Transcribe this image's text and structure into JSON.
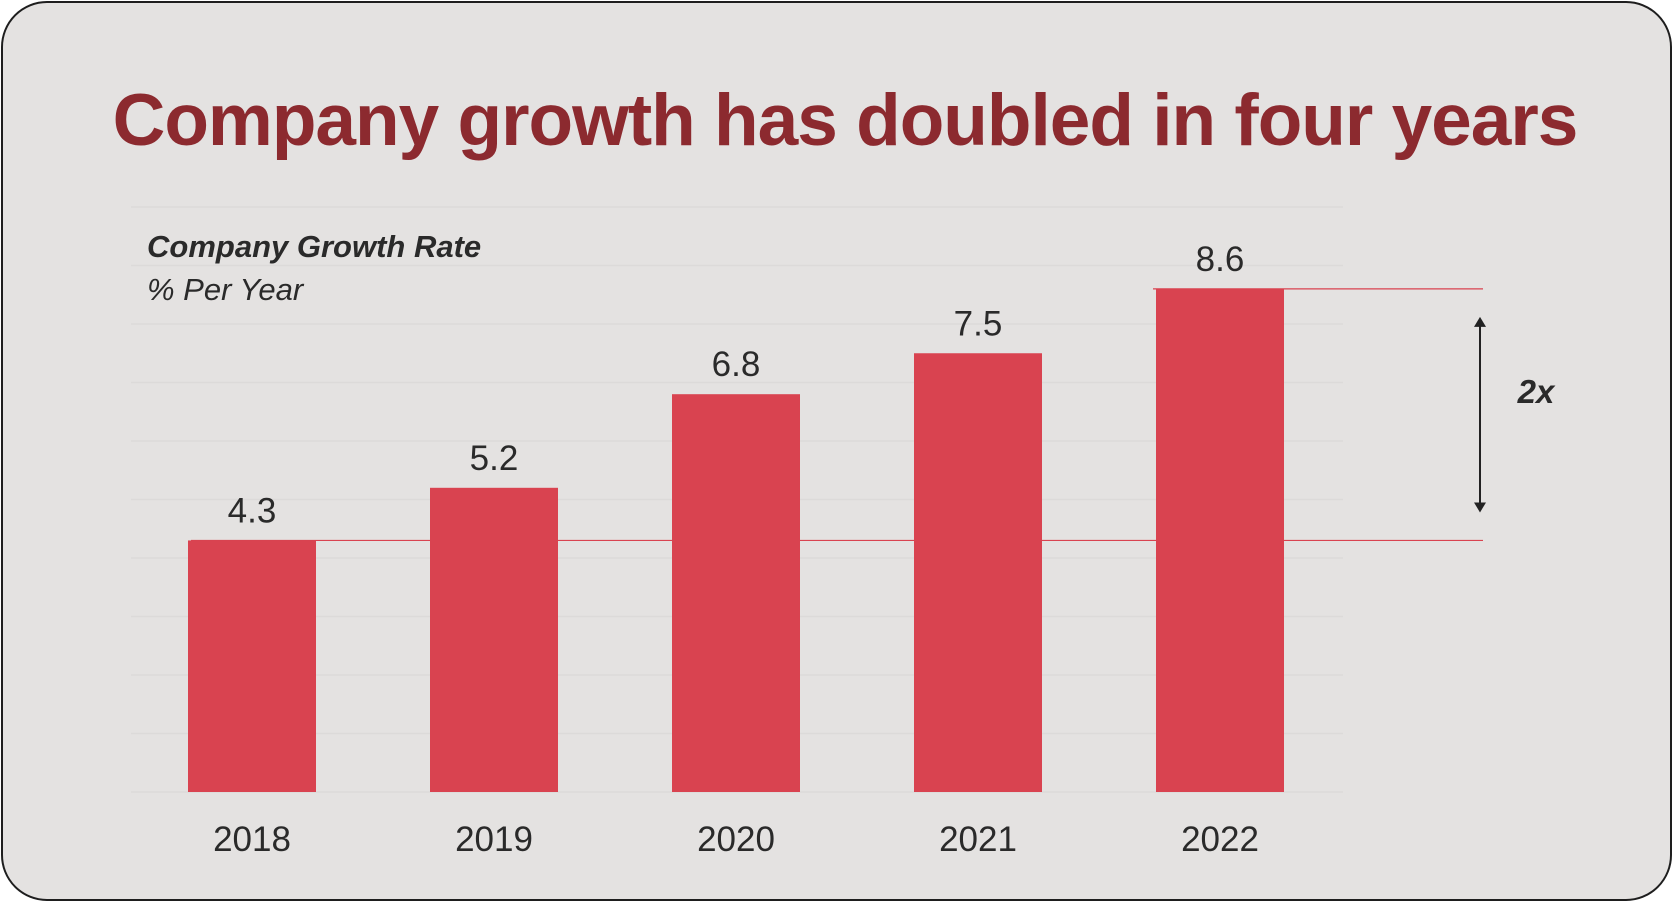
{
  "colors": {
    "background": "#e4e2e1",
    "bar": "#d94350",
    "title": "#8c2a2f",
    "text": "#2a2a2a",
    "reference_line": "#d94350",
    "gridline": "#dcdad9"
  },
  "chart_data": {
    "type": "bar",
    "title": "Company growth has doubled in four years",
    "subtitle": "Company Growth Rate",
    "unit_label": "% Per Year",
    "xlabel": "",
    "ylabel": "",
    "categories": [
      "2018",
      "2019",
      "2020",
      "2021",
      "2022"
    ],
    "values": [
      4.3,
      5.2,
      6.8,
      7.5,
      8.6
    ],
    "ylim": [
      0,
      10
    ],
    "grid": "horizontal, faint",
    "legend": "none",
    "data_labels": true,
    "annotation": {
      "label": "2x",
      "from_value": 4.3,
      "to_value": 8.6,
      "style": "double-headed arrow with reference lines"
    }
  }
}
